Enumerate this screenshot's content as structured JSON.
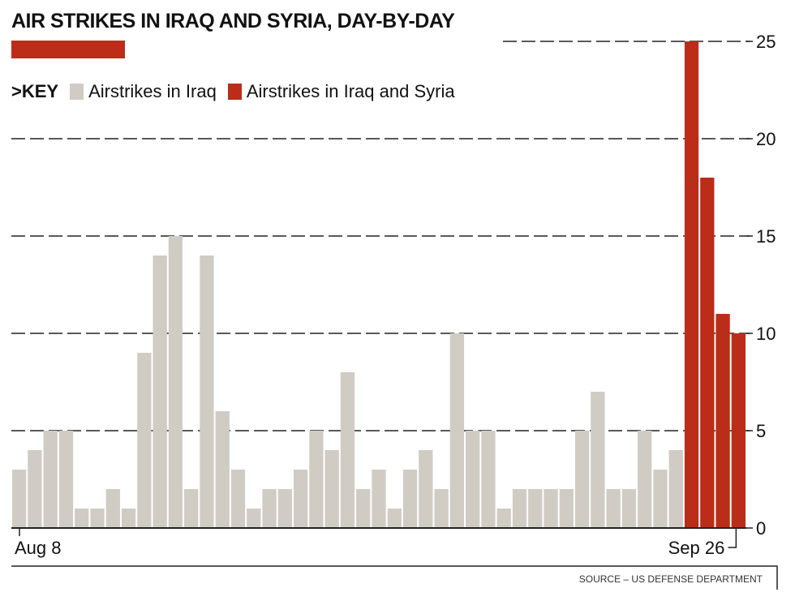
{
  "chart_data": {
    "type": "bar",
    "title": "AIR STRIKES IN IRAQ AND SYRIA, DAY-BY-DAY",
    "legend_key": ">KEY",
    "legend_placement": "top-left",
    "series": [
      {
        "name": "Airstrikes in Iraq",
        "color": "#d0ccc4",
        "values": [
          3,
          4,
          5,
          5,
          1,
          1,
          2,
          1,
          9,
          14,
          15,
          2,
          14,
          6,
          3,
          1,
          2,
          2,
          3,
          5,
          4,
          8,
          2,
          3,
          1,
          3,
          4,
          2,
          10,
          5,
          5,
          1,
          2,
          2,
          2,
          2,
          5,
          7,
          2,
          2,
          5,
          3,
          4
        ]
      },
      {
        "name": "Airstrikes in Iraq and Syria",
        "color": "#bb2d18",
        "values": [
          25,
          18,
          11,
          10
        ]
      }
    ],
    "x_tick_labels": [
      "Aug 8",
      "Sep 26"
    ],
    "y_ticks": [
      0,
      5,
      10,
      15,
      20,
      25
    ],
    "ylim": [
      0,
      25
    ],
    "grid": true,
    "xlabel": "",
    "ylabel": "",
    "source": "SOURCE – US DEFENSE DEPARTMENT",
    "accent": "#bb2d18"
  }
}
